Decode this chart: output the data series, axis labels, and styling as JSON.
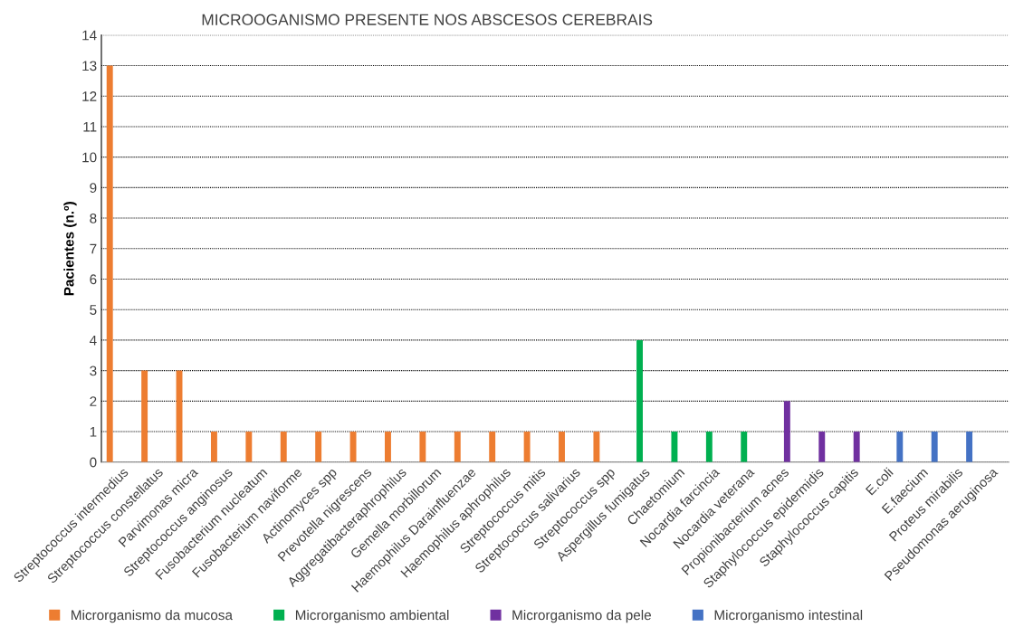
{
  "chart_data": {
    "type": "bar",
    "title": "MICROOGANISMO PRESENTE NOS ABSCESOS CEREBRAIS",
    "ylabel": "Pacientes (n.º)",
    "categories": [
      "Streptococcus intermedius",
      "Streptococcus constellatus",
      "Parvimonas micra",
      "Streptococcus anginosus",
      "Fusobacterium nucleatum",
      "Fusobacterium naviforme",
      "Actinomyces spp",
      "Prevotella nigrescens",
      "Aggregatibacteraphrophilus",
      "Gemella morbillorum",
      "Haemophilus Darainfluenzae",
      "Haemophilus aphrophilus",
      "Streptococcus mitis",
      "Streptococcus salivarius",
      "Streptococcus spp",
      "Aspergillus fumigatus",
      "Chaetomium",
      "Nocardia farcincia",
      "Nocardia veterana",
      "Propionibacterium acnes",
      "Staphylococcus epidermidis",
      "Staphylococcus capitis",
      "E.coli",
      "E.faecium",
      "Proteus mirabilis",
      "Pseudomonas aeruginosa"
    ],
    "series": [
      {
        "name": "Microrganismo da mucosa",
        "color": "#ed7d31",
        "values": [
          13,
          3,
          3,
          1,
          1,
          1,
          1,
          1,
          1,
          1,
          1,
          1,
          1,
          1,
          1,
          null,
          null,
          null,
          null,
          null,
          null,
          null,
          null,
          null,
          null,
          null
        ]
      },
      {
        "name": "Microrganismo ambiental",
        "color": "#00b050",
        "values": [
          null,
          null,
          null,
          null,
          null,
          null,
          null,
          null,
          null,
          null,
          null,
          null,
          null,
          null,
          null,
          4,
          1,
          1,
          1,
          null,
          null,
          null,
          null,
          null,
          null,
          null
        ]
      },
      {
        "name": "Microrganismo da pele",
        "color": "#7030a0",
        "values": [
          null,
          null,
          null,
          null,
          null,
          null,
          null,
          null,
          null,
          null,
          null,
          null,
          null,
          null,
          null,
          null,
          null,
          null,
          null,
          2,
          1,
          1,
          null,
          null,
          null,
          null
        ]
      },
      {
        "name": "Microrganismo intestinal",
        "color": "#4472c4",
        "values": [
          null,
          null,
          null,
          null,
          null,
          null,
          null,
          null,
          null,
          null,
          null,
          null,
          null,
          null,
          null,
          null,
          null,
          null,
          null,
          null,
          null,
          null,
          1,
          1,
          1,
          null
        ]
      }
    ],
    "ylim": [
      0,
      14
    ],
    "yticks": [
      0,
      1,
      2,
      3,
      4,
      5,
      6,
      7,
      8,
      9,
      10,
      11,
      12,
      13,
      14
    ],
    "grid": "y",
    "legend": "bottom"
  }
}
